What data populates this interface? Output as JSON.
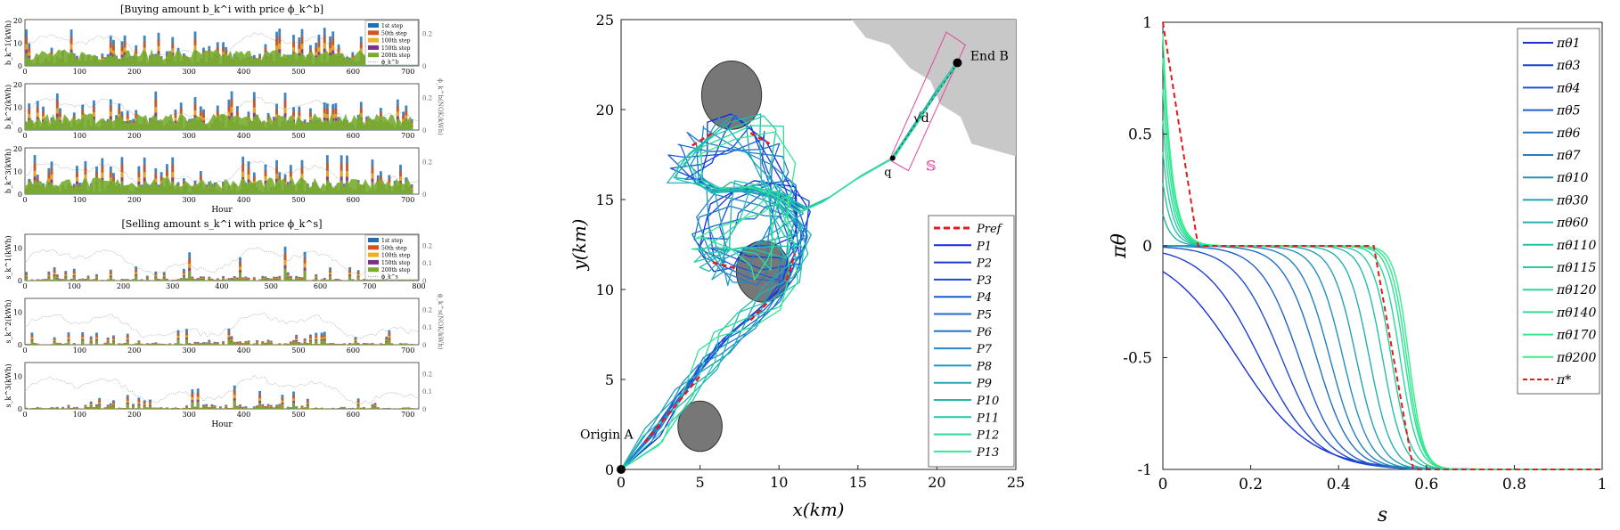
{
  "left": {
    "buying_title": "[Buying amount b_k^i with price ϕ_k^b]",
    "selling_title": "[Selling amount s_k^i with price ϕ_k^s]",
    "xlabel": "Hour",
    "legend": [
      "1st step",
      "50th step",
      "100th step",
      "150th step",
      "200th step"
    ],
    "legend_colors": [
      "#1f6fb4",
      "#d95319",
      "#edb120",
      "#7e2f8e",
      "#77ac30"
    ],
    "buying_price_legend": "ϕ_k^b",
    "selling_price_legend": "ϕ_k^s",
    "buying_ylabels": [
      "b_k^1(kWh)",
      "b_k^2(kWh)",
      "b_k^3(kWh)"
    ],
    "selling_ylabels": [
      "s_k^1(kWh)",
      "s_k^2(kWh)",
      "s_k^3(kWh)"
    ],
    "buying_right_ylabel": "ϕ_k^b(NOK/kWh)",
    "selling_right_ylabel": "ϕ_k^s(NOK/kWh)",
    "buying_yticks": [
      "0",
      "10",
      "20"
    ],
    "buying_right_ticks": [
      "0",
      "0.2"
    ],
    "selling_yticks": [
      "0",
      "10"
    ],
    "selling_right_ticks": [
      "0",
      "0.1",
      "0.2"
    ],
    "xticks_720": [
      "0",
      "100",
      "200",
      "300",
      "400",
      "500",
      "600",
      "700"
    ],
    "xticks_800": [
      "0",
      "100",
      "200",
      "300",
      "400",
      "500",
      "600",
      "700",
      "800"
    ]
  },
  "chart_data": [
    {
      "type": "line",
      "title": "",
      "xlabel": "x(km)",
      "ylabel": "y(km)",
      "xlim": [
        0,
        25
      ],
      "ylim": [
        0,
        25
      ],
      "xticks": [
        "0",
        "5",
        "10",
        "15",
        "20",
        "25"
      ],
      "yticks": [
        "0",
        "5",
        "10",
        "15",
        "20",
        "25"
      ],
      "legend_position": "bottom-right",
      "legend": [
        "P_ref",
        "P_1",
        "P_2",
        "P_3",
        "P_4",
        "P_5",
        "P_6",
        "P_7",
        "P_8",
        "P_9",
        "P_10",
        "P_11",
        "P_12",
        "P_13"
      ],
      "annotations": [
        "Origin A",
        "End B",
        "q",
        "√d",
        "𝕊"
      ],
      "origin": [
        0,
        0
      ],
      "end": [
        21.3,
        22.6
      ],
      "q_point": [
        17.2,
        17.3
      ],
      "obstacles": [
        {
          "cx": 7,
          "cy": 20.8,
          "r": 1.9
        },
        {
          "cx": 9,
          "cy": 11,
          "r": 1.7
        },
        {
          "cx": 5,
          "cy": 2.4,
          "r": 1.4
        }
      ],
      "reference_path": [
        [
          0,
          0
        ],
        [
          2,
          2
        ],
        [
          4,
          4.4
        ],
        [
          5.5,
          6
        ],
        [
          6.5,
          7
        ],
        [
          8,
          8.2
        ],
        [
          9.5,
          9.5
        ],
        [
          10.7,
          11
        ],
        [
          11.2,
          12.6
        ],
        [
          11,
          14
        ],
        [
          10,
          15
        ],
        [
          8,
          15
        ],
        [
          6.5,
          14.5
        ],
        [
          5.8,
          13
        ],
        [
          5.5,
          12
        ],
        [
          6,
          11.3
        ],
        [
          7.5,
          11.3
        ],
        [
          9,
          11.5
        ],
        [
          10.3,
          12.5
        ],
        [
          10.5,
          14
        ],
        [
          10,
          16
        ],
        [
          9.2,
          18
        ],
        [
          8,
          18.7
        ],
        [
          6,
          18.6
        ],
        [
          4.7,
          18
        ],
        [
          4,
          17
        ]
      ],
      "colors": [
        "#e41a1c",
        "#1428e0",
        "#1638dc",
        "#1848d8",
        "#1a58d4",
        "#1c68d0",
        "#1e78cc",
        "#2088c8",
        "#2098c0",
        "#20a8b8",
        "#20b8b0",
        "#22c8a8",
        "#28d8a0",
        "#30e898"
      ]
    },
    {
      "type": "line",
      "title": "",
      "xlabel": "s",
      "ylabel": "π_θ",
      "xlim": [
        0,
        1
      ],
      "ylim": [
        -1,
        1
      ],
      "xticks": [
        "0",
        "0.2",
        "0.4",
        "0.6",
        "0.8",
        "1"
      ],
      "yticks": [
        "1",
        "0.5",
        "0",
        "-0.5",
        "-1"
      ],
      "legend_position": "top-right",
      "legend": [
        "π_θ1",
        "π_θ3",
        "π_θ4",
        "π_θ5",
        "π_θ6",
        "π_θ7",
        "π_θ10",
        "π_θ30",
        "π_θ60",
        "π_θ110",
        "π_θ115",
        "π_θ120",
        "π_θ140",
        "π_θ170",
        "π_θ200",
        "π*"
      ],
      "series_midpoints": [
        0.17,
        0.22,
        0.27,
        0.31,
        0.35,
        0.38,
        0.41,
        0.44,
        0.47,
        0.5,
        0.52,
        0.54,
        0.55,
        0.555,
        0.56
      ],
      "optimal_policy": [
        [
          0,
          1
        ],
        [
          0.08,
          0
        ],
        [
          0.48,
          0
        ],
        [
          0.57,
          -1
        ],
        [
          1,
          -1
        ]
      ],
      "colors": [
        "#1a2fd6",
        "#1c3fd2",
        "#1e4fce",
        "#2060ca",
        "#2070c6",
        "#2280c2",
        "#2290be",
        "#22a0b8",
        "#22b0b0",
        "#24c0a8",
        "#26cca0",
        "#28d89a",
        "#2ce096",
        "#30e890",
        "#34f08a",
        "#e41a1c"
      ]
    }
  ]
}
